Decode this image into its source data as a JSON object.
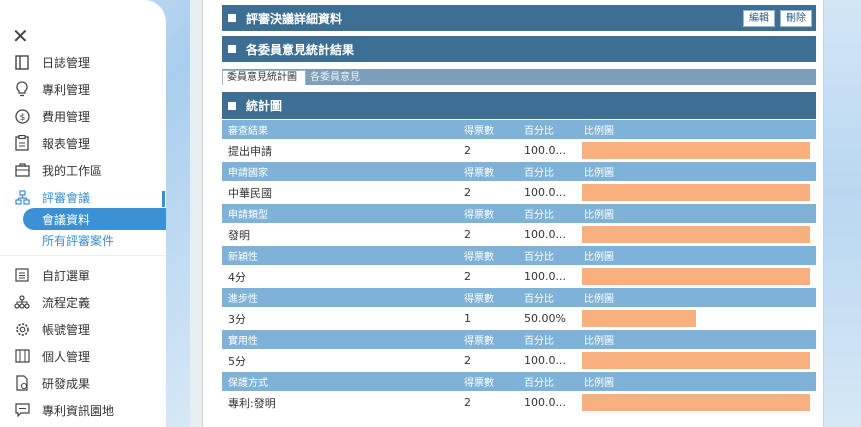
{
  "sidebar": {
    "items": [
      {
        "label": "日誌管理",
        "icon": "journal-icon"
      },
      {
        "label": "專利管理",
        "icon": "lightbulb-icon"
      },
      {
        "label": "費用管理",
        "icon": "dollar-icon"
      },
      {
        "label": "報表管理",
        "icon": "clipboard-icon"
      },
      {
        "label": "我的工作區",
        "icon": "briefcase-icon"
      },
      {
        "label": "評審會議",
        "icon": "network-icon"
      },
      {
        "label": "自訂選單",
        "icon": "list-icon"
      },
      {
        "label": "流程定義",
        "icon": "flow-icon"
      },
      {
        "label": "帳號管理",
        "icon": "gear-icon"
      },
      {
        "label": "個人管理",
        "icon": "panel-icon"
      },
      {
        "label": "研發成果",
        "icon": "document-icon"
      },
      {
        "label": "專利資訊園地",
        "icon": "message-icon"
      }
    ],
    "sub_active": "會議資料",
    "sub_item": "所有評審案件"
  },
  "sections": {
    "detail_title": "評審決議詳細資料",
    "edit_label": "編輯",
    "delete_label": "刪除",
    "committee_title": "各委員意見統計結果",
    "tab_stats": "委員意見統計圖",
    "tab_opinions": "各委員意見",
    "stats_title": "統計圖"
  },
  "colors": {
    "header": "#3d6f95",
    "row_header": "#7fb2d8",
    "bar": "#f8b07f",
    "accent": "#3b91d3"
  },
  "stats": [
    {
      "category": "審查結果",
      "votes_label": "得票數",
      "percent_label": "百分比",
      "chart_label": "比例圖",
      "value": "提出申請",
      "votes": "2",
      "percent": "100.0...",
      "ratio": 1.0
    },
    {
      "category": "申請國家",
      "votes_label": "得票數",
      "percent_label": "百分比",
      "chart_label": "比例圖",
      "value": "中華民國",
      "votes": "2",
      "percent": "100.0...",
      "ratio": 1.0
    },
    {
      "category": "申請類型",
      "votes_label": "得票數",
      "percent_label": "百分比",
      "chart_label": "比例圖",
      "value": "發明",
      "votes": "2",
      "percent": "100.0...",
      "ratio": 1.0
    },
    {
      "category": "新穎性",
      "votes_label": "得票數",
      "percent_label": "百分比",
      "chart_label": "比例圖",
      "value": "4分",
      "votes": "2",
      "percent": "100.0...",
      "ratio": 1.0
    },
    {
      "category": "進步性",
      "votes_label": "得票數",
      "percent_label": "百分比",
      "chart_label": "比例圖",
      "value": "3分",
      "votes": "1",
      "percent": "50.00%",
      "ratio": 0.5
    },
    {
      "category": "實用性",
      "votes_label": "得票數",
      "percent_label": "百分比",
      "chart_label": "比例圖",
      "value": "5分",
      "votes": "2",
      "percent": "100.0...",
      "ratio": 1.0
    },
    {
      "category": "保護方式",
      "votes_label": "得票數",
      "percent_label": "百分比",
      "chart_label": "比例圖",
      "value": "專利:發明",
      "votes": "2",
      "percent": "100.0...",
      "ratio": 1.0
    }
  ]
}
